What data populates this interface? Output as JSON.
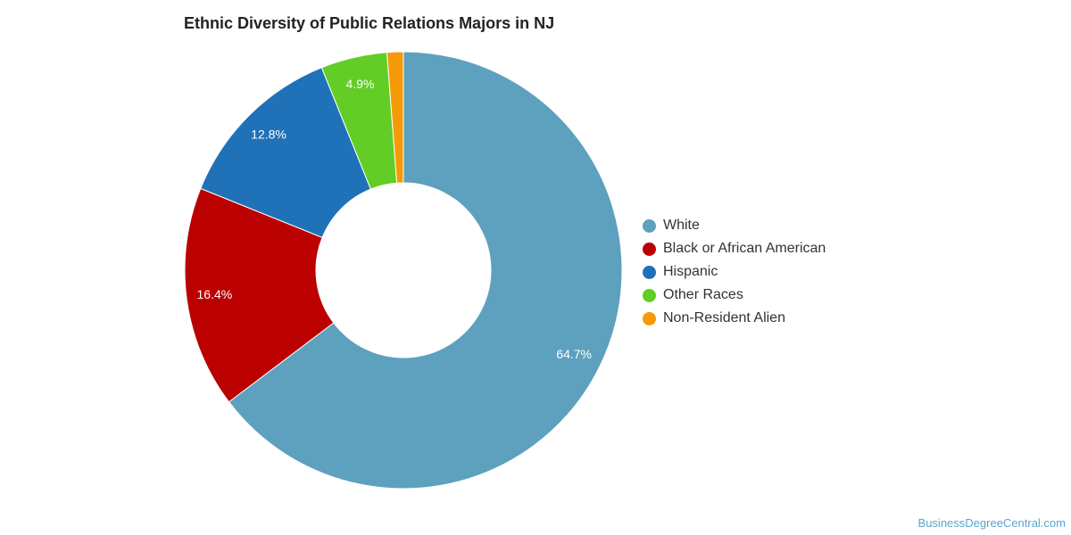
{
  "chart_data": {
    "type": "pie",
    "variant": "donut",
    "title": "Ethnic Diversity of Public Relations Majors in NJ",
    "slices": [
      {
        "label": "White",
        "value": 64.7,
        "display": "64.7%",
        "color": "#5da1be"
      },
      {
        "label": "Black or African American",
        "value": 16.4,
        "display": "16.4%",
        "color": "#bb0000"
      },
      {
        "label": "Hispanic",
        "value": 12.8,
        "display": "12.8%",
        "color": "#1f72b8"
      },
      {
        "label": "Other Races",
        "value": 4.9,
        "display": "4.9%",
        "color": "#62cd24"
      },
      {
        "label": "Non-Resident Alien",
        "value": 1.2,
        "display": "",
        "color": "#f59a07"
      }
    ],
    "legend_position": "right"
  },
  "footer": {
    "watermark": "BusinessDegreeCentral.com"
  }
}
